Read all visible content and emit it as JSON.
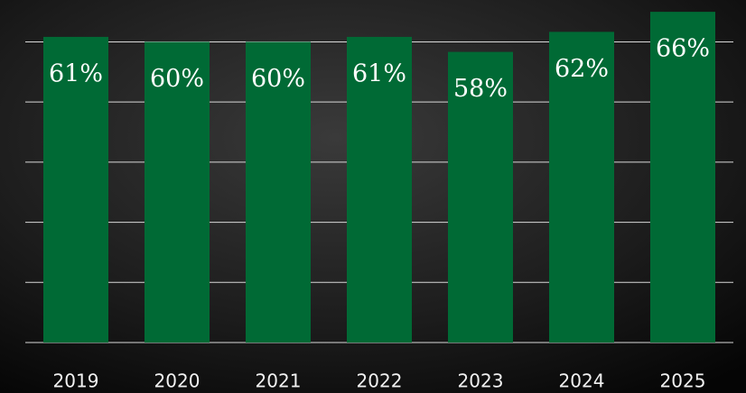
{
  "chart_data": {
    "type": "bar",
    "categories": [
      "2019",
      "2020",
      "2021",
      "2022",
      "2023",
      "2024",
      "2025"
    ],
    "values": [
      61,
      60,
      60,
      61,
      58,
      62,
      66
    ],
    "value_labels": [
      "61%",
      "60%",
      "60%",
      "61%",
      "58%",
      "62%",
      "66%"
    ],
    "color": "#006a35",
    "ylim": [
      0,
      68
    ],
    "yticks": [
      0,
      12,
      24,
      36,
      48,
      60
    ],
    "grid": true
  }
}
